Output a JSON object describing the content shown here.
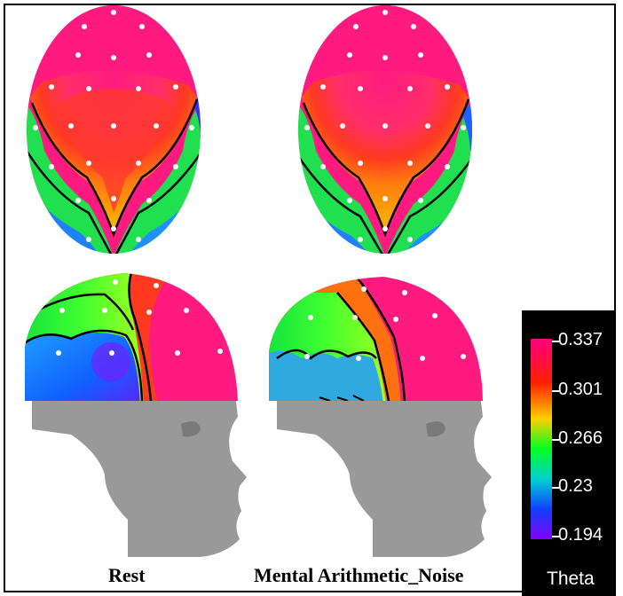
{
  "figure": {
    "labels": {
      "rest": "Rest",
      "noise": "Mental Arithmetic_Noise"
    },
    "colorbar": {
      "title": "Theta",
      "ticks": [
        "0.337",
        "0.301",
        "0.266",
        "0.23",
        "0.194"
      ],
      "colors": [
        "#ff0080",
        "#ff3000",
        "#00ff30",
        "#0040ff",
        "#8000ff"
      ]
    }
  }
}
